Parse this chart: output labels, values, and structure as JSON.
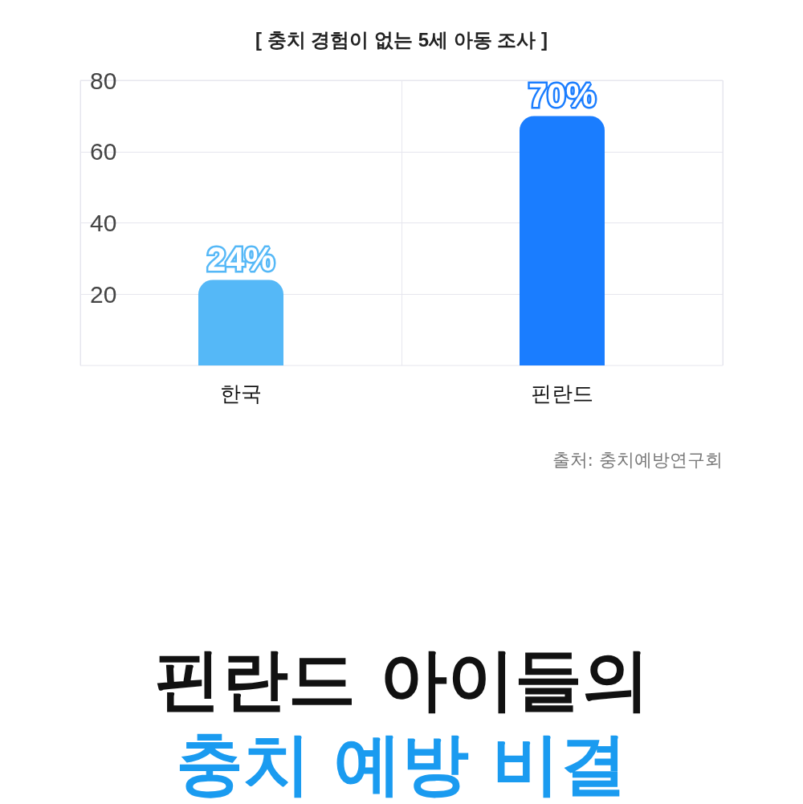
{
  "chart_data": {
    "type": "bar",
    "title": "[ 충치 경험이 없는 5세 아동 조사 ]",
    "categories": [
      "한국",
      "핀란드"
    ],
    "values": [
      24,
      70
    ],
    "colors": [
      "#55b8f7",
      "#1a7dff"
    ],
    "value_labels": [
      "24%",
      "70%"
    ],
    "ylim": [
      0,
      80
    ],
    "yticks": [
      20,
      40,
      60,
      80
    ],
    "grid": true,
    "annotations": [
      "출처: 충치예방연구회",
      "핀란드 아이들의",
      "충치 예방 비결"
    ]
  }
}
